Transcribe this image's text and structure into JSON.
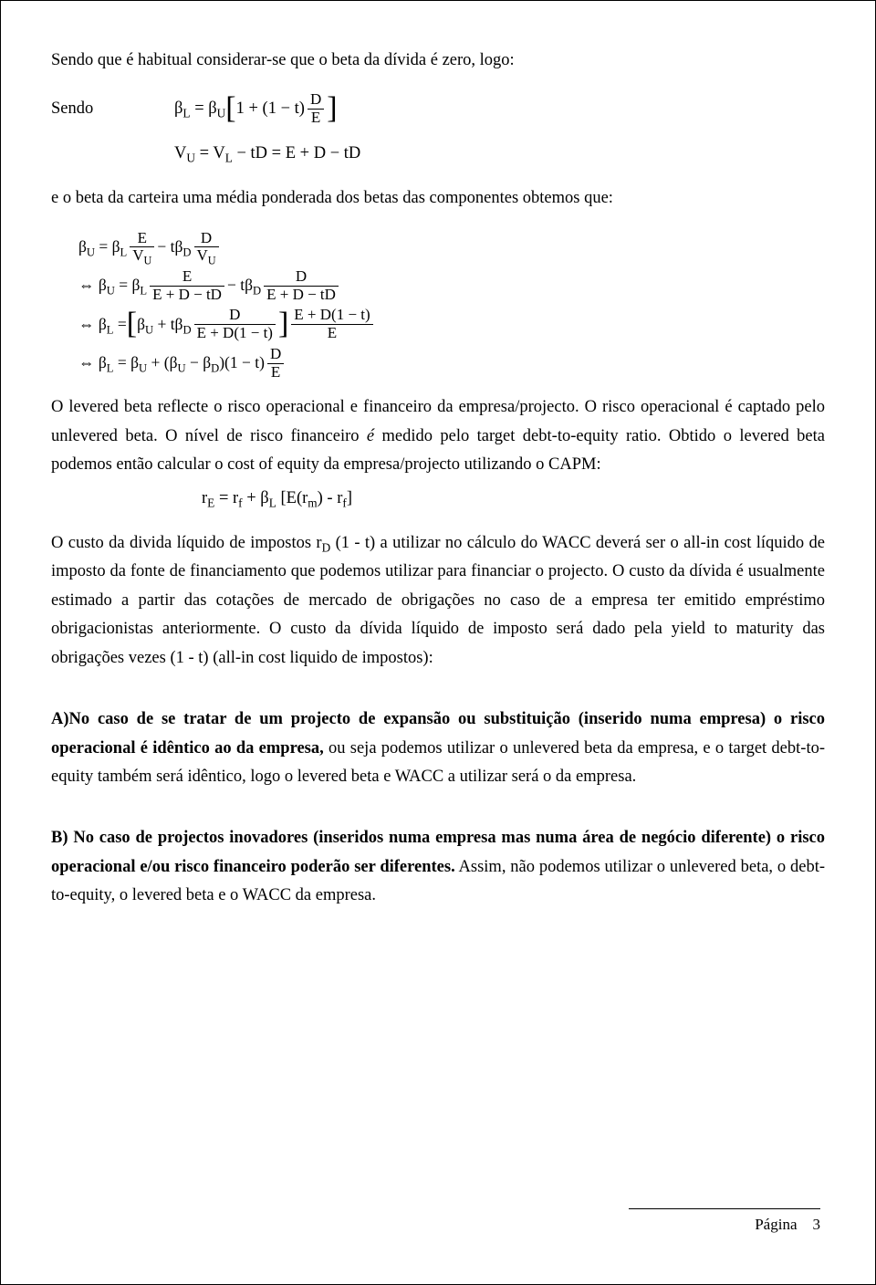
{
  "p1": "Sendo que é habitual considerar-se que o beta da dívida é zero, logo:",
  "sendoLabel": "Sendo",
  "p2": "e o beta da carteira uma média ponderada dos betas das componentes obtemos que:",
  "p3a": "O levered beta reflecte o risco operacional e financeiro da empresa/projecto. O risco operacional é captado pelo unlevered beta. O nível de risco financeiro ",
  "p3b": "é",
  "p3c": " medido pelo target debt-to-equity ratio. Obtido o levered beta podemos então calcular o cost of equity da empresa/projecto utilizando o CAPM:",
  "capm": "rE = rf + βL [E(rm) - rf]",
  "p4": "O custo da divida líquido de impostos rD (1 - t) a utilizar no cálculo do WACC deverá ser o all-in cost líquido de imposto da fonte de financiamento que podemos utilizar para financiar o projecto. O custo da dívida é usualmente estimado a partir das cotações de mercado de obrigações no caso de a empresa ter emitido empréstimo obrigacionistas anteriormente. O custo da dívida líquido de imposto será dado pela yield to maturity das obrigações vezes (1 - t) (all-in cost liquido de impostos):",
  "pA_bold": "A)No caso de se tratar de um projecto de expansão ou substituição (inserido numa empresa) o risco operacional é idêntico ao da empresa,",
  "pA_rest": " ou seja podemos utilizar o unlevered beta da empresa, e o target debt-to-equity também será idêntico, logo o levered beta e WACC a utilizar será o da empresa.",
  "pB_bold": "B) No caso de projectos inovadores (inseridos numa empresa mas numa área de negócio diferente) o risco operacional e/ou risco financeiro poderão ser diferentes.",
  "pB_rest": " Assim, não podemos utilizar o unlevered beta, o debt-to-equity, o levered beta e o WACC da empresa.",
  "footerLabel": "Página",
  "pageNum": "3"
}
